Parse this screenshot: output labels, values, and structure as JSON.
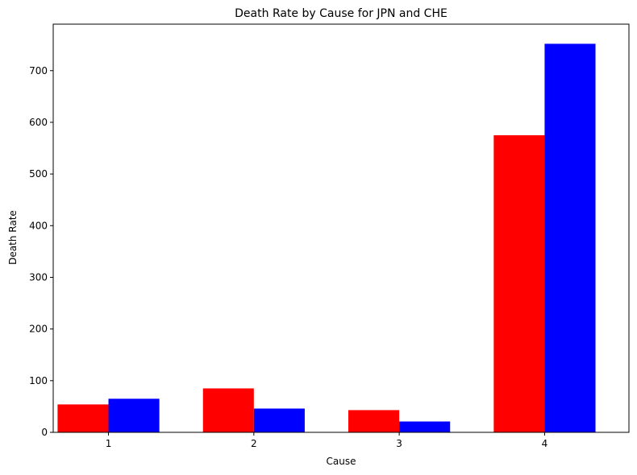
{
  "chart_data": {
    "type": "bar",
    "title": "Death Rate by Cause for JPN and CHE",
    "xlabel": "Cause",
    "ylabel": "Death Rate",
    "categories": [
      "1",
      "2",
      "3",
      "4"
    ],
    "series": [
      {
        "values": [
          54,
          85,
          43,
          575
        ],
        "color": "#ff0000"
      },
      {
        "values": [
          65,
          46,
          21,
          752
        ],
        "color": "#0000ff"
      }
    ],
    "ylim": [
      0,
      790
    ],
    "yticks": [
      "0",
      "100",
      "200",
      "300",
      "400",
      "500",
      "600",
      "700"
    ],
    "grid": false
  }
}
